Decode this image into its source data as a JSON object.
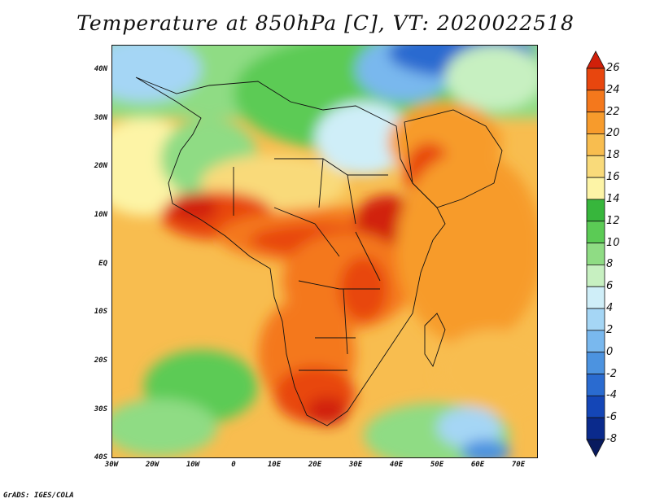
{
  "title": "Temperature at 850hPa [C], VT: 2020022518",
  "credit": "GrADS: IGES/COLA",
  "map": {
    "variable": "Temperature at 850hPa",
    "units": "C",
    "valid_time": "2020022518",
    "lat_labels": [
      "40N",
      "30N",
      "20N",
      "10N",
      "EQ",
      "10S",
      "20S",
      "30S",
      "40S"
    ],
    "lon_labels": [
      "30W",
      "20W",
      "10W",
      "0",
      "10E",
      "20E",
      "30E",
      "40E",
      "50E",
      "60E",
      "70E"
    ]
  },
  "colorbar": {
    "labels": [
      "26",
      "24",
      "22",
      "20",
      "18",
      "16",
      "14",
      "12",
      "10",
      "8",
      "6",
      "4",
      "2",
      "0",
      "-2",
      "-4",
      "-6",
      "-8"
    ],
    "colors": [
      "#d1200a",
      "#e8460e",
      "#f4781c",
      "#f79b2c",
      "#f8bd4f",
      "#f9da7a",
      "#fdf4a6",
      "#37b63c",
      "#5bcb55",
      "#8fdc84",
      "#c7f0c1",
      "#cfeef8",
      "#a5d6f5",
      "#79b8ee",
      "#4c93e0",
      "#2a6bd0",
      "#1446b7",
      "#0a2a8c",
      "#081a5e"
    ]
  }
}
